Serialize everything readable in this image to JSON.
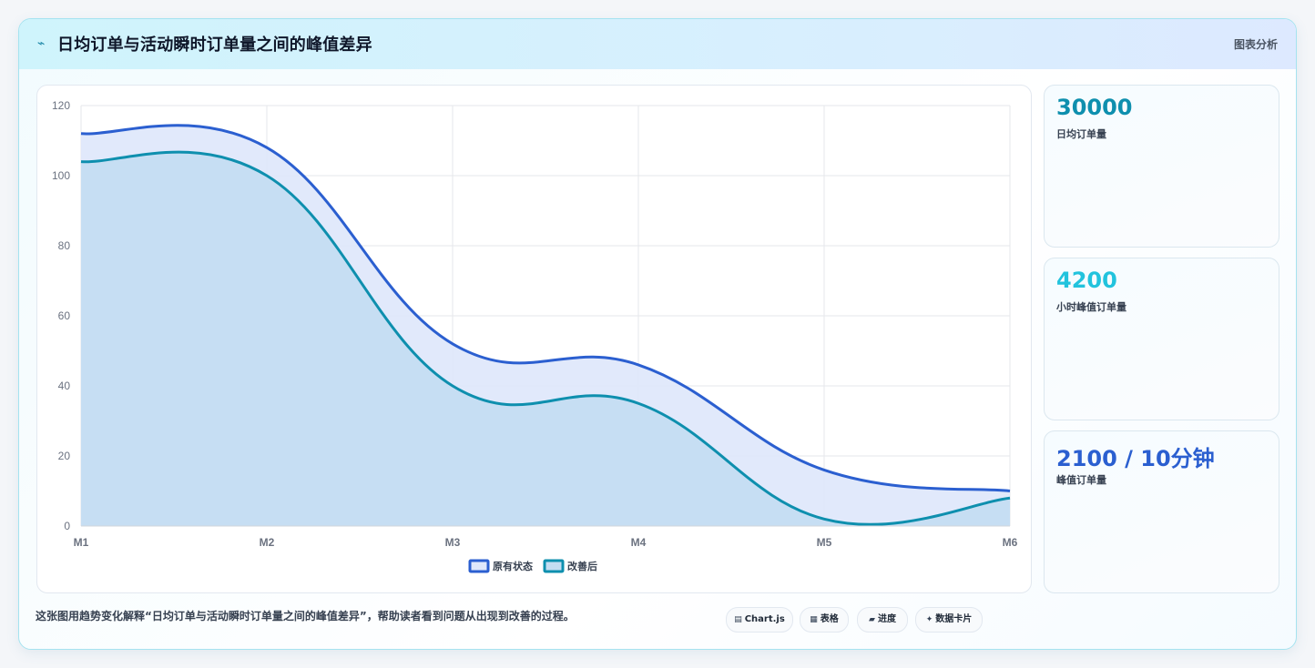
{
  "header": {
    "icon": "trend-icon",
    "title": "日均订单与活动瞬时订单量之间的峰值差异",
    "tag": "图表分析"
  },
  "stats": [
    {
      "value": "30000",
      "label": "日均订单量",
      "color": "#0e8fae"
    },
    {
      "value": "4200",
      "label": "小时峰值订单量",
      "color": "#22c3dd"
    },
    {
      "value": "2100 / 10分钟",
      "label": "峰值订单量",
      "color": "#2b5fd0"
    }
  ],
  "caption": "这张图用趋势变化解释“日均订单与活动瞬时订单量之间的峰值差异”，帮助读者看到问题从出现到改善的过程。",
  "chips": [
    {
      "icon": "▤",
      "label": "Chart.js"
    },
    {
      "icon": "▦",
      "label": "表格"
    },
    {
      "icon": "▰",
      "label": "进度"
    },
    {
      "icon": "✦",
      "label": "数据卡片"
    }
  ],
  "chart_data": {
    "type": "area",
    "categories": [
      "M1",
      "M2",
      "M3",
      "M4",
      "M5",
      "M6"
    ],
    "ylim": [
      0,
      120
    ],
    "yticks": [
      0,
      20,
      40,
      60,
      80,
      100,
      120
    ],
    "grid": true,
    "legend": "bottom",
    "series": [
      {
        "name": "原有状态",
        "values": [
          112,
          108,
          52,
          46,
          16,
          10
        ],
        "color": "#2b5fd0",
        "fill": "#dfe8fb"
      },
      {
        "name": "改善后",
        "values": [
          104,
          100,
          40,
          35,
          2,
          8
        ],
        "color": "#0e8fae",
        "fill": "#c4ddf2"
      }
    ]
  }
}
